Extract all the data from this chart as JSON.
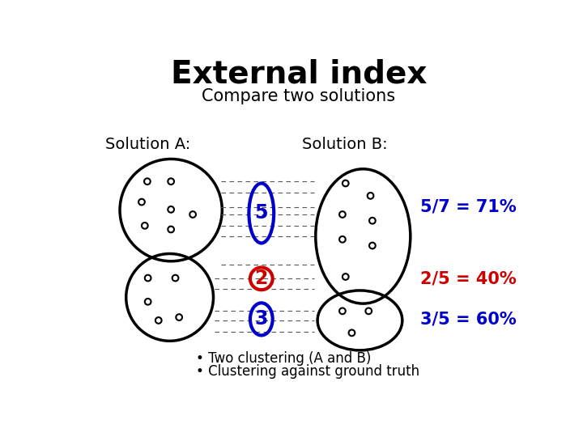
{
  "title": "External index",
  "subtitle": "Compare two solutions",
  "label_A": "Solution A:",
  "label_B": "Solution B:",
  "annotation1": "5/7 = 71%",
  "annotation2": "2/5 = 40%",
  "annotation3": "3/5 = 60%",
  "color_blue": "#0000cc",
  "color_red": "#cc0000",
  "color_black": "#000000",
  "color_white": "#ffffff",
  "bullet1": "• Two clustering (A and B)",
  "bullet2": "• Clustering against ground truth",
  "bg_color": "#ffffff"
}
